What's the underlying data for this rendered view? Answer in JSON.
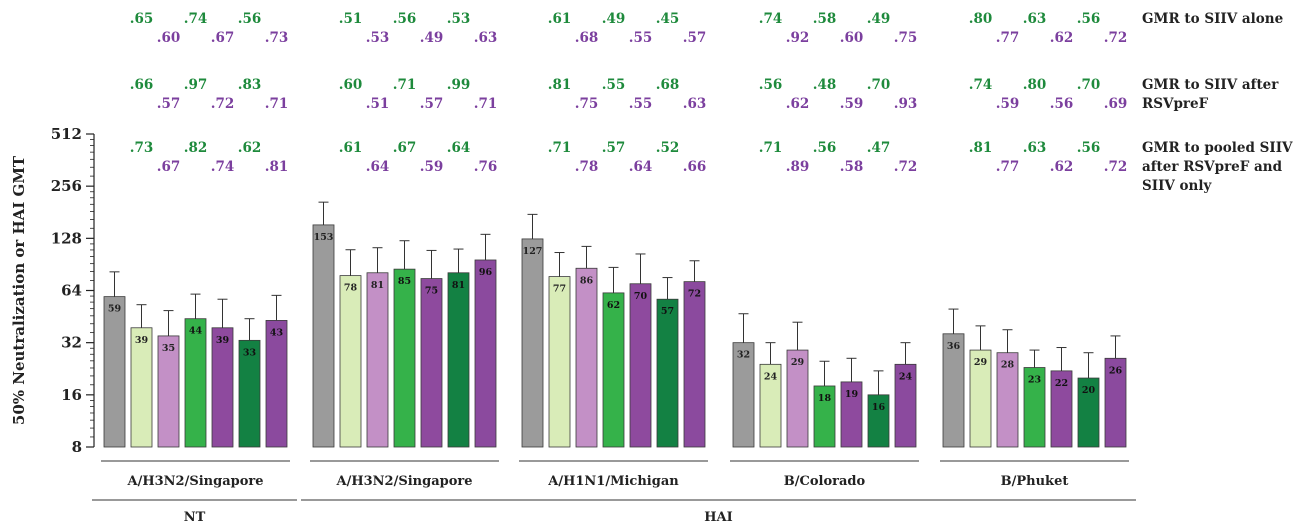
{
  "chart_data": {
    "type": "bar",
    "ylabel": "50% Neutralization or HAI GMT",
    "yscale": "log2",
    "ylim": [
      8,
      512
    ],
    "yticks": [
      8,
      16,
      32,
      64,
      128,
      256,
      512
    ],
    "groups": [
      {
        "name": "A/H3N2/Singapore",
        "assay": "NT",
        "values": [
          59,
          39,
          35,
          44,
          39,
          33,
          43
        ],
        "upper": [
          82,
          53,
          49,
          61,
          57,
          44,
          60
        ]
      },
      {
        "name": "A/H3N2/Singapore",
        "assay": "HAI",
        "values": [
          153,
          78,
          81,
          85,
          75,
          81,
          96
        ],
        "upper": [
          207,
          110,
          113,
          124,
          109,
          111,
          135
        ]
      },
      {
        "name": "A/H1N1/Michigan",
        "assay": "HAI",
        "values": [
          127,
          77,
          86,
          62,
          70,
          57,
          72
        ],
        "upper": [
          176,
          106,
          115,
          87,
          104,
          76,
          95
        ]
      },
      {
        "name": "B/Colorado",
        "assay": "HAI",
        "values": [
          32,
          24,
          29,
          18,
          19,
          16,
          24
        ],
        "upper": [
          47,
          32,
          42,
          25,
          26,
          22,
          32
        ]
      },
      {
        "name": "B/Phuket",
        "assay": "HAI",
        "values": [
          36,
          29,
          28,
          23,
          22,
          20,
          26
        ],
        "upper": [
          50,
          40,
          38,
          29,
          30,
          28,
          35
        ]
      }
    ],
    "assays": [
      {
        "name": "NT",
        "from": 0,
        "to": 0
      },
      {
        "name": "HAI",
        "from": 1,
        "to": 4
      }
    ],
    "bar_colors": [
      "#9b9b9b",
      "#d9ecb8",
      "#c390c6",
      "#35b24a",
      "#8e4a9e",
      "#138143",
      "#8b4a9e"
    ],
    "gmr_rows": [
      {
        "label": "GMR to SIIV alone",
        "values": [
          [
            ".65",
            ".60",
            ".74",
            ".67",
            ".56",
            ".73"
          ],
          [
            ".51",
            ".53",
            ".56",
            ".49",
            ".53",
            ".63"
          ],
          [
            ".61",
            ".68",
            ".49",
            ".55",
            ".45",
            ".57"
          ],
          [
            ".74",
            ".92",
            ".58",
            ".60",
            ".49",
            ".75"
          ],
          [
            ".80",
            ".77",
            ".63",
            ".62",
            ".56",
            ".72"
          ]
        ]
      },
      {
        "label": "GMR to SIIV after RSVpreF",
        "values": [
          [
            ".66",
            ".57",
            ".97",
            ".72",
            ".83",
            ".71"
          ],
          [
            ".60",
            ".51",
            ".71",
            ".57",
            ".99",
            ".71"
          ],
          [
            ".81",
            ".75",
            ".55",
            ".55",
            ".68",
            ".63"
          ],
          [
            ".56",
            ".62",
            ".48",
            ".59",
            ".70",
            ".93"
          ],
          [
            ".74",
            ".59",
            ".80",
            ".56",
            ".70",
            ".69"
          ]
        ]
      },
      {
        "label": "GMR to pooled SIIV after RSVpreF and SIIV only",
        "values": [
          [
            ".73",
            ".67",
            ".82",
            ".74",
            ".62",
            ".81"
          ],
          [
            ".61",
            ".64",
            ".67",
            ".59",
            ".64",
            ".76"
          ],
          [
            ".71",
            ".78",
            ".57",
            ".64",
            ".52",
            ".66"
          ],
          [
            ".71",
            ".89",
            ".56",
            ".58",
            ".47",
            ".72"
          ],
          [
            ".81",
            ".77",
            ".63",
            ".62",
            ".56",
            ".72"
          ]
        ]
      }
    ],
    "gmr_colors": {
      "green": "#1e8a3c",
      "purple": "#7b3f9e"
    },
    "text_color": "#222222"
  }
}
